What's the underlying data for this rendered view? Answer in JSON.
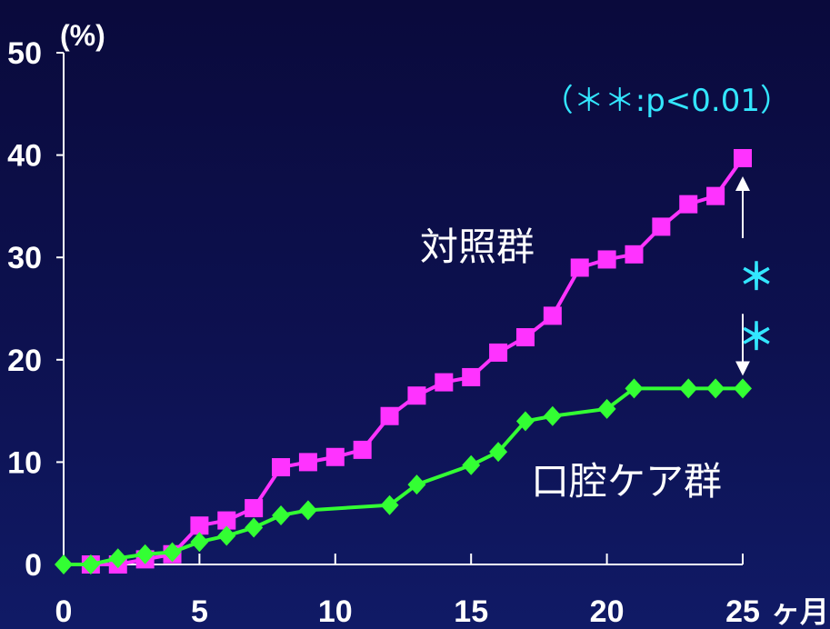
{
  "chart_data": {
    "type": "line",
    "ylabel": "(%)",
    "xlabel": "ヶ月",
    "ylim": [
      0,
      50
    ],
    "xlim": [
      0,
      25
    ],
    "xticks": [
      0,
      5,
      10,
      15,
      20,
      25
    ],
    "yticks": [
      0,
      10,
      20,
      30,
      40,
      50
    ],
    "grid": false,
    "series": [
      {
        "name": "対照群",
        "color": "#ff33ff",
        "marker": "square",
        "x": [
          1,
          2,
          3,
          4,
          5,
          6,
          7,
          8,
          9,
          10,
          11,
          12,
          13,
          14,
          15,
          16,
          17,
          18,
          19,
          20,
          21,
          22,
          23,
          24,
          25
        ],
        "y": [
          0,
          0,
          0.5,
          1,
          3.8,
          4.3,
          5.5,
          9.5,
          10,
          10.5,
          11.2,
          14.5,
          16.5,
          17.8,
          18.3,
          20.7,
          22.2,
          24.3,
          29,
          29.8,
          30.3,
          33,
          35.2,
          36,
          39.7
        ]
      },
      {
        "name": "口腔ケア群",
        "color": "#33ff33",
        "marker": "diamond",
        "x": [
          0,
          1,
          2,
          3,
          4,
          5,
          6,
          7,
          8,
          9,
          12,
          13,
          15,
          16,
          17,
          18,
          20,
          21,
          23,
          24,
          25
        ],
        "y": [
          0,
          0,
          0.6,
          1,
          1.2,
          2.2,
          2.8,
          3.6,
          4.8,
          5.3,
          5.8,
          7.8,
          9.7,
          11,
          14,
          14.5,
          15.2,
          17.2,
          17.2,
          17.2,
          17.2
        ]
      }
    ],
    "annotations": {
      "significance_note": "（＊＊:p<0.01）",
      "significance_marker": "＊＊"
    }
  }
}
